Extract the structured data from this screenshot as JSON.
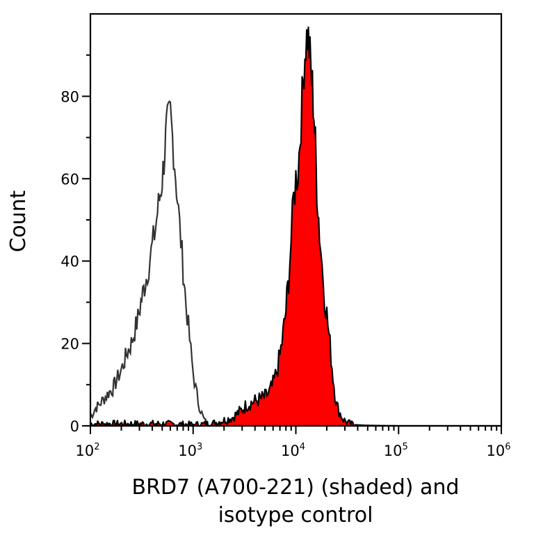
{
  "chart_data": {
    "type": "histogram",
    "title": "",
    "xlabel": "BRD7 (A700-221) (shaded) and isotype control",
    "xlabel_lines": [
      "BRD7 (A700-221) (shaded) and",
      "isotype control"
    ],
    "ylabel": "Count",
    "xscale": "log",
    "xlim": [
      100,
      1000000
    ],
    "ylim": [
      0,
      100
    ],
    "x_ticks": [
      {
        "value": 100,
        "base": "10",
        "exp": "2"
      },
      {
        "value": 1000,
        "base": "10",
        "exp": "3"
      },
      {
        "value": 10000,
        "base": "10",
        "exp": "4"
      },
      {
        "value": 100000,
        "base": "10",
        "exp": "5"
      },
      {
        "value": 1000000,
        "base": "10",
        "exp": "6"
      }
    ],
    "y_ticks": [
      0,
      20,
      40,
      60,
      80
    ],
    "y_minor_ticks": [
      10,
      30,
      50,
      70,
      90
    ],
    "grid": false,
    "legend": "none",
    "series": [
      {
        "name": "isotype control",
        "style": "outline",
        "color": "#333333",
        "x": [
          100,
          110,
          120,
          130,
          140,
          150,
          165,
          180,
          195,
          210,
          230,
          250,
          270,
          290,
          310,
          330,
          350,
          370,
          390,
          410,
          430,
          450,
          470,
          490,
          510,
          530,
          550,
          575,
          600,
          630,
          660,
          690,
          720,
          760,
          800,
          850,
          900,
          950,
          1000,
          1060,
          1120,
          1180,
          1250,
          1320,
          1400,
          1500,
          1600
        ],
        "values": [
          2,
          4,
          5,
          6,
          7,
          8,
          9,
          11,
          13,
          15,
          18,
          20,
          23,
          26,
          30,
          33,
          36,
          39,
          42,
          45,
          48,
          52,
          55,
          58,
          62,
          67,
          72,
          74,
          76,
          70,
          64,
          58,
          52,
          45,
          38,
          30,
          24,
          18,
          13,
          9,
          6,
          4,
          2,
          1,
          0.5,
          0.2,
          0
        ]
      },
      {
        "name": "BRD7 (A700-221)",
        "style": "filled",
        "color": "#ff0000",
        "edge_color": "#000000",
        "x": [
          100,
          500,
          1000,
          1500,
          1800,
          2100,
          2400,
          2700,
          3000,
          3300,
          3600,
          4000,
          4500,
          5000,
          5500,
          6000,
          6500,
          7000,
          7500,
          8000,
          8500,
          9000,
          9500,
          10000,
          10500,
          11000,
          11500,
          12000,
          12500,
          13000,
          13500,
          14000,
          14500,
          15000,
          15500,
          16000,
          17000,
          18000,
          19000,
          20000,
          21000,
          22000,
          23000,
          24000,
          25000,
          27000,
          29000,
          32000,
          35000,
          40000,
          50000,
          70000,
          100000,
          1000000
        ],
        "values": [
          0.5,
          0.5,
          0.3,
          0.5,
          1,
          1.5,
          2,
          3,
          4,
          5,
          5.5,
          6,
          6.5,
          7,
          8,
          10,
          13,
          17,
          22,
          28,
          36,
          45,
          55,
          60,
          62,
          70,
          79,
          88,
          93,
          95,
          92,
          86,
          82,
          76,
          68,
          58,
          47,
          39,
          32,
          27,
          22,
          17,
          12,
          8,
          5,
          3,
          1.5,
          0.8,
          0.4,
          0.2,
          0.1,
          0.05,
          0,
          0
        ]
      }
    ]
  }
}
